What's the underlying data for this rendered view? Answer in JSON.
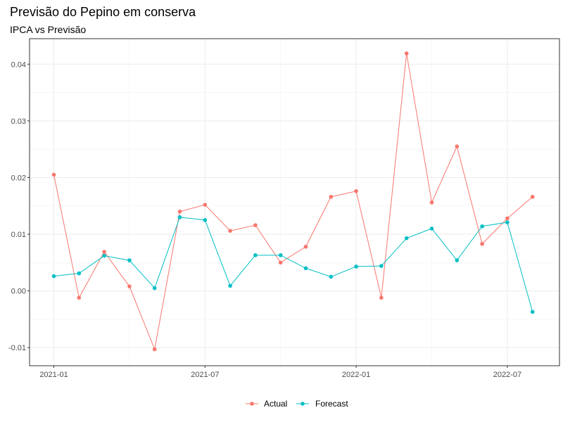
{
  "chart_data": {
    "type": "line",
    "title": "Previsão do Pepino em conserva",
    "subtitle": "IPCA vs Previsão",
    "xlabel": "",
    "ylabel": "",
    "x": [
      "2021-01",
      "2021-02",
      "2021-03",
      "2021-04",
      "2021-05",
      "2021-06",
      "2021-07",
      "2021-08",
      "2021-09",
      "2021-10",
      "2021-11",
      "2021-12",
      "2022-01",
      "2022-02",
      "2022-03",
      "2022-04",
      "2022-05",
      "2022-06",
      "2022-07",
      "2022-08"
    ],
    "x_ticks": [
      "2021-01",
      "2021-07",
      "2022-01",
      "2022-07"
    ],
    "y_ticks": [
      -0.01,
      0.0,
      0.01,
      0.02,
      0.03,
      0.04
    ],
    "y_tick_labels": [
      "-0.01",
      "0.00",
      "0.01",
      "0.02",
      "0.03",
      "0.04"
    ],
    "ylim": [
      -0.0132,
      0.0445
    ],
    "grid": true,
    "legend_position": "bottom",
    "series": [
      {
        "name": "Actual",
        "color": "#F8766D",
        "values": [
          0.0205,
          -0.0012,
          0.0069,
          0.0008,
          -0.0103,
          0.014,
          0.0152,
          0.0106,
          0.0116,
          0.005,
          0.0078,
          0.0166,
          0.0176,
          -0.0012,
          0.0419,
          0.0156,
          0.0255,
          0.0083,
          0.0128,
          0.0166
        ]
      },
      {
        "name": "Forecast",
        "color": "#00BFC4",
        "values": [
          0.0026,
          0.0031,
          0.0062,
          0.0054,
          0.0005,
          0.013,
          0.0125,
          0.0009,
          0.0063,
          0.0063,
          0.004,
          0.0025,
          0.0043,
          0.0044,
          0.0093,
          0.011,
          0.0054,
          0.0114,
          0.0121,
          -0.0037
        ]
      }
    ]
  }
}
